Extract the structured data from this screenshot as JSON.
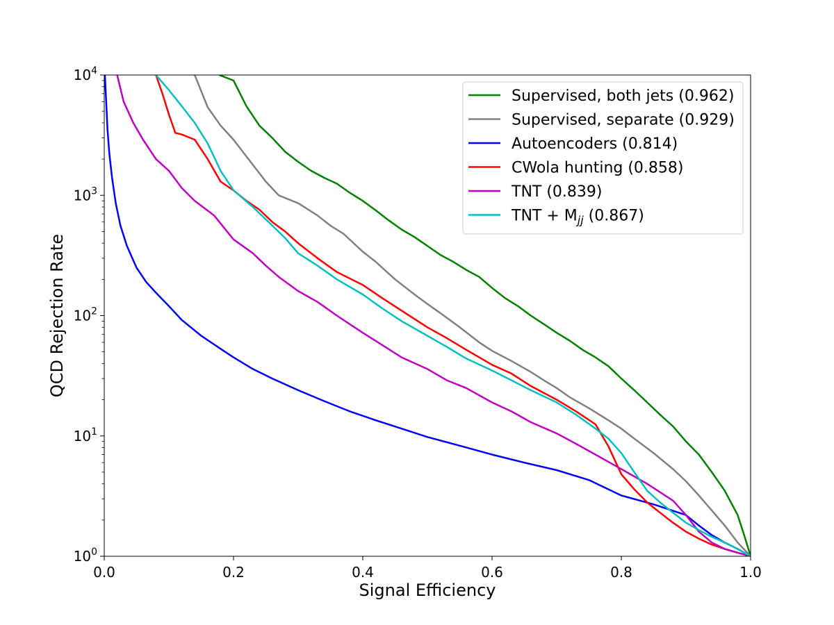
{
  "chart_data": {
    "type": "line",
    "title": "",
    "xlabel": "Signal Efficiency",
    "ylabel": "QCD Rejection Rate",
    "xscale": "linear",
    "yscale": "log",
    "xlim": [
      0.0,
      1.0
    ],
    "ylim": [
      1,
      10000
    ],
    "grid": false,
    "legend_position": "top-right",
    "x_ticks": [
      "0.0",
      "0.2",
      "0.4",
      "0.6",
      "0.8",
      "1.0"
    ],
    "y_ticks": [
      {
        "base": "10",
        "exp": "0"
      },
      {
        "base": "10",
        "exp": "1"
      },
      {
        "base": "10",
        "exp": "2"
      },
      {
        "base": "10",
        "exp": "3"
      },
      {
        "base": "10",
        "exp": "4"
      }
    ],
    "series": [
      {
        "name": "Supervised, both jets (0.962)",
        "color": "#008000",
        "x": [
          0.178,
          0.2,
          0.22,
          0.24,
          0.26,
          0.28,
          0.3,
          0.32,
          0.34,
          0.36,
          0.38,
          0.4,
          0.42,
          0.44,
          0.46,
          0.48,
          0.5,
          0.52,
          0.54,
          0.56,
          0.58,
          0.6,
          0.62,
          0.64,
          0.66,
          0.68,
          0.7,
          0.72,
          0.74,
          0.76,
          0.78,
          0.8,
          0.82,
          0.84,
          0.86,
          0.88,
          0.9,
          0.92,
          0.94,
          0.96,
          0.98,
          0.99,
          1.0
        ],
        "y": [
          10000,
          9000,
          5500,
          3800,
          3000,
          2300,
          1900,
          1600,
          1400,
          1250,
          1050,
          900,
          750,
          620,
          520,
          450,
          380,
          320,
          280,
          240,
          210,
          170,
          140,
          120,
          100,
          85,
          72,
          62,
          52,
          45,
          38,
          30,
          24,
          19,
          15,
          12,
          9,
          7,
          5,
          3.5,
          2.2,
          1.5,
          1.0
        ]
      },
      {
        "name": "Supervised, separate (0.929)",
        "color": "#808080",
        "x": [
          0.14,
          0.16,
          0.18,
          0.2,
          0.22,
          0.25,
          0.27,
          0.3,
          0.33,
          0.35,
          0.37,
          0.4,
          0.42,
          0.45,
          0.48,
          0.5,
          0.52,
          0.55,
          0.58,
          0.6,
          0.63,
          0.66,
          0.68,
          0.7,
          0.72,
          0.75,
          0.78,
          0.8,
          0.82,
          0.85,
          0.88,
          0.9,
          0.92,
          0.94,
          0.96,
          0.98,
          1.0
        ],
        "y": [
          10000,
          5400,
          3800,
          2900,
          2100,
          1300,
          1000,
          860,
          680,
          560,
          480,
          340,
          280,
          200,
          150,
          125,
          105,
          80,
          60,
          51,
          42,
          34,
          29,
          25,
          21,
          17,
          13.5,
          11.5,
          9.5,
          7.2,
          5.3,
          4.2,
          3.2,
          2.4,
          1.8,
          1.3,
          1.0
        ]
      },
      {
        "name": "Autoencoders (0.814)",
        "color": "#0000ff",
        "x": [
          0.001,
          0.003,
          0.005,
          0.008,
          0.012,
          0.018,
          0.025,
          0.035,
          0.05,
          0.065,
          0.08,
          0.1,
          0.12,
          0.15,
          0.18,
          0.2,
          0.23,
          0.26,
          0.3,
          0.34,
          0.38,
          0.42,
          0.46,
          0.5,
          0.55,
          0.6,
          0.65,
          0.7,
          0.75,
          0.8,
          0.85,
          0.9,
          0.92,
          0.94,
          0.96,
          0.98,
          1.0
        ],
        "y": [
          10000,
          6000,
          3500,
          2200,
          1400,
          850,
          560,
          380,
          250,
          190,
          155,
          120,
          92,
          68,
          53,
          45,
          36,
          30,
          24,
          19.5,
          16,
          13.5,
          11.5,
          9.8,
          8.3,
          7.0,
          6.0,
          5.2,
          4.3,
          3.2,
          2.7,
          2.2,
          1.8,
          1.5,
          1.3,
          1.15,
          1.0
        ]
      },
      {
        "name": "CWola hunting (0.858)",
        "color": "#ff0000",
        "x": [
          0.08,
          0.09,
          0.1,
          0.11,
          0.12,
          0.14,
          0.16,
          0.18,
          0.2,
          0.22,
          0.24,
          0.26,
          0.28,
          0.3,
          0.33,
          0.36,
          0.4,
          0.43,
          0.46,
          0.5,
          0.53,
          0.56,
          0.6,
          0.63,
          0.66,
          0.7,
          0.73,
          0.76,
          0.78,
          0.8,
          0.82,
          0.84,
          0.86,
          0.88,
          0.9,
          0.92,
          0.94,
          0.96,
          0.98,
          1.0
        ],
        "y": [
          10000,
          7000,
          4700,
          3300,
          3200,
          2900,
          2000,
          1300,
          1100,
          900,
          760,
          600,
          500,
          400,
          300,
          230,
          180,
          140,
          110,
          80,
          65,
          52,
          39,
          33,
          26,
          20,
          16,
          12.5,
          8.2,
          4.8,
          3.6,
          2.8,
          2.3,
          1.9,
          1.6,
          1.4,
          1.25,
          1.15,
          1.07,
          1.0
        ]
      },
      {
        "name": "TNT (0.839)",
        "color": "#bf00bf",
        "x": [
          0.02,
          0.03,
          0.045,
          0.06,
          0.08,
          0.1,
          0.12,
          0.14,
          0.17,
          0.2,
          0.23,
          0.25,
          0.27,
          0.3,
          0.33,
          0.36,
          0.4,
          0.43,
          0.46,
          0.5,
          0.53,
          0.56,
          0.6,
          0.63,
          0.66,
          0.7,
          0.73,
          0.76,
          0.8,
          0.84,
          0.88,
          0.9,
          0.92,
          0.94,
          0.96,
          0.98,
          1.0
        ],
        "y": [
          10000,
          6000,
          4000,
          2900,
          2000,
          1600,
          1150,
          900,
          680,
          430,
          330,
          260,
          210,
          160,
          130,
          100,
          72,
          57,
          45,
          36,
          29,
          25,
          19,
          16,
          13,
          10.5,
          8.6,
          7.0,
          5.3,
          4.0,
          2.9,
          2.2,
          1.6,
          1.3,
          1.15,
          1.07,
          1.0
        ]
      },
      {
        "name": "TNT + M_jj (0.867)",
        "label_main": "TNT + M",
        "label_sub": "jj",
        "label_tail": " (0.867)",
        "color": "#00bfbf",
        "x": [
          0.08,
          0.1,
          0.12,
          0.14,
          0.16,
          0.18,
          0.2,
          0.23,
          0.26,
          0.28,
          0.3,
          0.33,
          0.36,
          0.4,
          0.43,
          0.46,
          0.5,
          0.53,
          0.56,
          0.6,
          0.63,
          0.66,
          0.7,
          0.73,
          0.76,
          0.78,
          0.8,
          0.82,
          0.84,
          0.86,
          0.88,
          0.9,
          0.92,
          0.94,
          0.96,
          0.98,
          1.0
        ],
        "y": [
          10000,
          7500,
          5500,
          4000,
          2700,
          1600,
          1100,
          800,
          560,
          440,
          330,
          260,
          200,
          150,
          115,
          90,
          68,
          55,
          44,
          35,
          29,
          24,
          19,
          15,
          11.5,
          9.5,
          7.2,
          5.0,
          3.5,
          2.8,
          2.3,
          1.9,
          1.65,
          1.45,
          1.3,
          1.15,
          1.0
        ]
      }
    ]
  }
}
